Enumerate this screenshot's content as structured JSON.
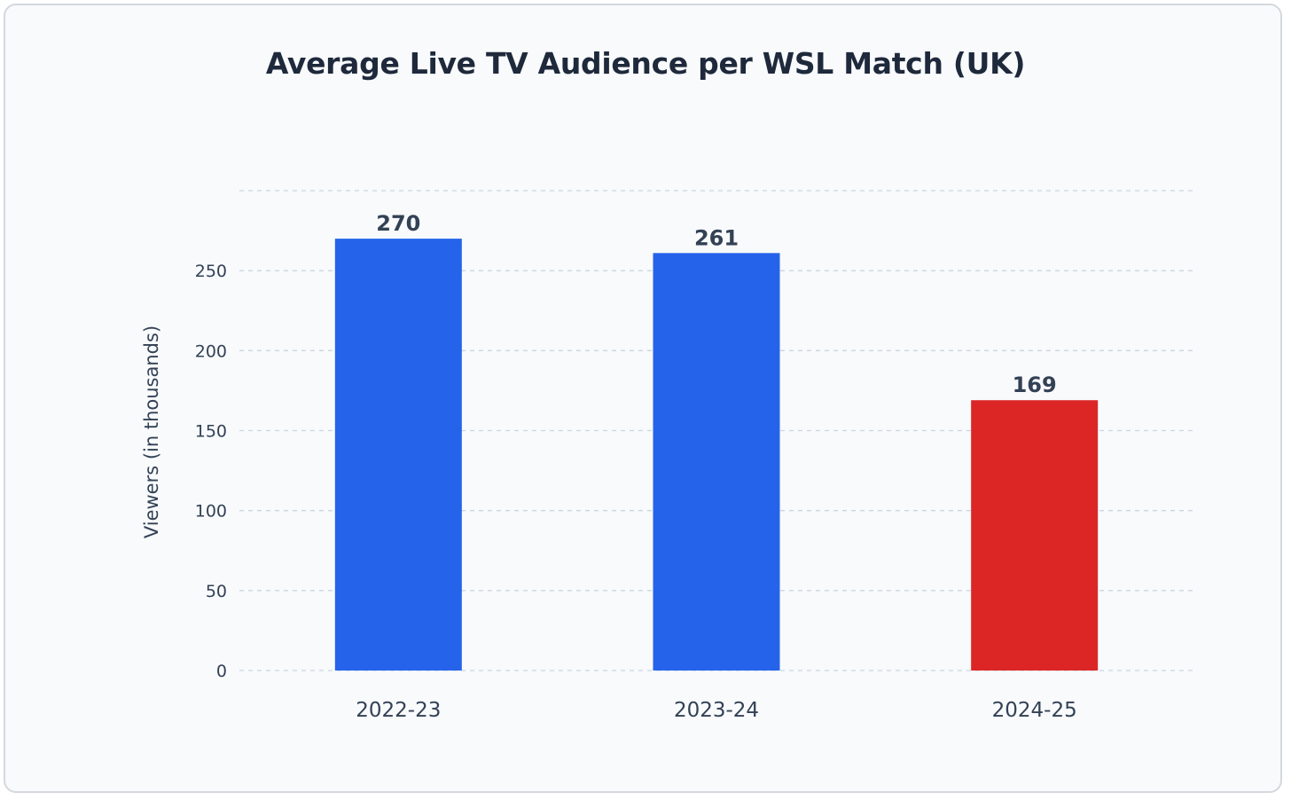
{
  "chart_data": {
    "type": "bar",
    "title": "Average Live TV Audience per WSL Match (UK)",
    "xlabel": "",
    "ylabel": "Viewers (in thousands)",
    "categories": [
      "2022-23",
      "2023-24",
      "2024-25"
    ],
    "values": [
      270,
      261,
      169
    ],
    "value_labels": [
      "270",
      "261",
      "169"
    ],
    "bar_colors": [
      "#2563eb",
      "#2563eb",
      "#dc2626"
    ],
    "ylim": [
      0,
      300
    ],
    "yticks": [
      0,
      50,
      100,
      150,
      200,
      250
    ],
    "ytick_labels": [
      "0",
      "50",
      "100",
      "150",
      "200",
      "250"
    ],
    "grid": true,
    "legend": "none"
  }
}
